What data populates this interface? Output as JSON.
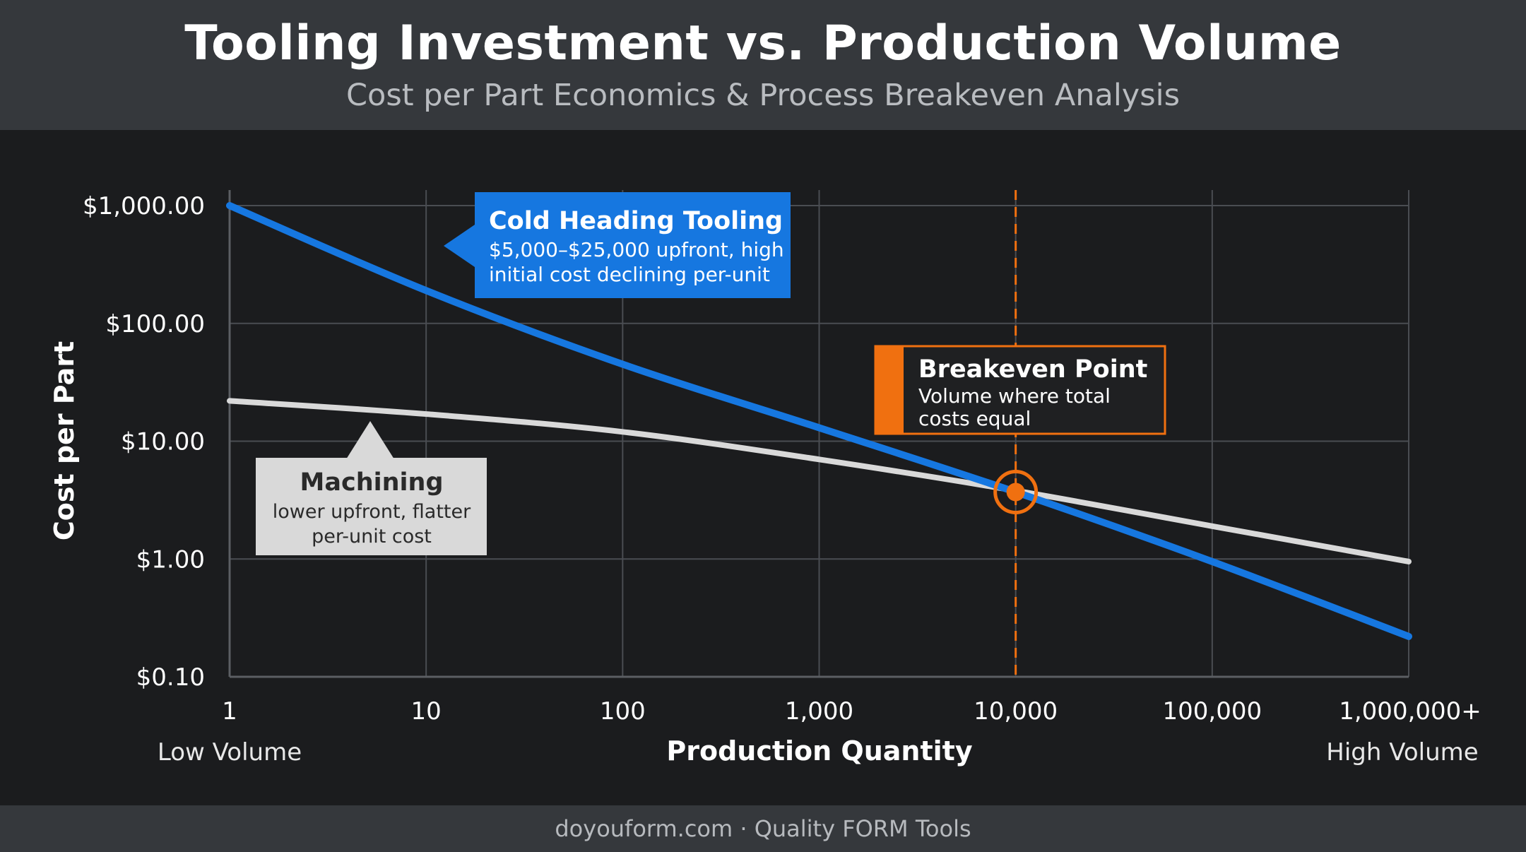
{
  "header": {
    "title": "Tooling Investment vs. Production Volume",
    "subtitle": "Cost per Part Economics & Process Breakeven Analysis"
  },
  "footer": {
    "text": "doyouform.com · Quality FORM Tools"
  },
  "colors": {
    "cold_heading": "#1677e0",
    "machining": "#d9d9d9",
    "breakeven": "#f07010",
    "grid": "#4a4d52"
  },
  "chart_data": {
    "type": "line",
    "title": "Tooling Investment vs. Production Volume",
    "subtitle": "Cost per Part Economics & Process Breakeven Analysis",
    "xlabel": "Production Quantity",
    "ylabel": "Cost per Part",
    "x_scale": "log",
    "y_scale": "log",
    "xlim": [
      1,
      1000000
    ],
    "ylim": [
      0.1,
      1000
    ],
    "x_ticks": [
      1,
      10,
      100,
      1000,
      10000,
      100000,
      1000000
    ],
    "x_tick_labels": [
      "1",
      "10",
      "100",
      "1,000",
      "10,000",
      "100,000",
      "1,000,000+"
    ],
    "y_ticks": [
      1000,
      100,
      10,
      1,
      0.1
    ],
    "y_tick_labels": [
      "$1,000.00",
      "$100.00",
      "$10.00",
      "$1.00",
      "$0.10"
    ],
    "x_end_labels": {
      "left": "Low Volume",
      "right": "High Volume"
    },
    "grid": true,
    "series": [
      {
        "key": "cold_heading",
        "x": [
          1,
          10,
          100,
          1000,
          10000,
          100000,
          1000000
        ],
        "y": [
          1000,
          190,
          45,
          13,
          3.7,
          0.95,
          0.22
        ]
      },
      {
        "key": "machining",
        "x": [
          1,
          10,
          100,
          1000,
          10000,
          100000,
          1000000
        ],
        "y": [
          22,
          17,
          12,
          7,
          3.8,
          1.9,
          0.95
        ]
      }
    ],
    "breakeven": {
      "x": 10000,
      "y": 3.7
    },
    "annotations": {
      "cold_heading": {
        "title": "Cold Heading Tooling",
        "lines": [
          "$5,000–$25,000 upfront, high",
          "initial cost declining per-unit"
        ]
      },
      "machining": {
        "title": "Machining",
        "lines": [
          "lower upfront, flatter",
          "per-unit cost"
        ]
      },
      "breakeven": {
        "title": "Breakeven Point",
        "lines": [
          "Volume where total",
          "costs equal"
        ]
      }
    }
  }
}
